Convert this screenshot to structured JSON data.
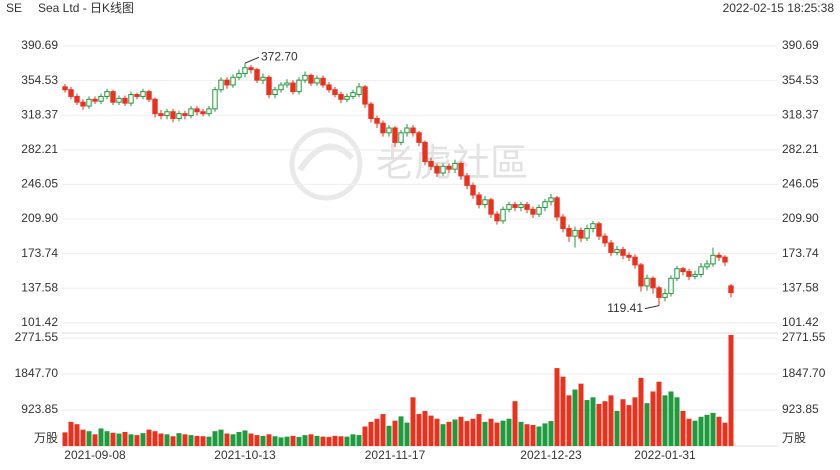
{
  "chart_data": {
    "type": "candlestick",
    "ticker": "SE",
    "title": "Sea Ltd - 日K线图",
    "timestamp": "2022-02-15 18:25:38",
    "watermark": "老虎社區",
    "categories": [
      null,
      null,
      null,
      null,
      null,
      "2021-09-08",
      null,
      null,
      null,
      null,
      null,
      null,
      null,
      null,
      null,
      null,
      null,
      null,
      null,
      null,
      null,
      null,
      null,
      null,
      null,
      null,
      null,
      null,
      null,
      null,
      "2021-10-13",
      null,
      null,
      null,
      null,
      null,
      null,
      null,
      null,
      null,
      null,
      null,
      null,
      null,
      null,
      null,
      null,
      null,
      null,
      null,
      null,
      null,
      null,
      null,
      null,
      "2021-11-17",
      null,
      null,
      null,
      null,
      null,
      null,
      null,
      null,
      null,
      null,
      null,
      null,
      null,
      null,
      null,
      null,
      null,
      null,
      null,
      null,
      null,
      null,
      null,
      null,
      null,
      "2021-12-23",
      null,
      null,
      null,
      null,
      null,
      null,
      null,
      null,
      null,
      null,
      null,
      null,
      null,
      null,
      null,
      null,
      null,
      null,
      "2022-01-31",
      null,
      null,
      null,
      null,
      null,
      null,
      null,
      null,
      null,
      null,
      null
    ],
    "open": [
      348,
      345,
      338,
      332,
      328,
      335,
      333,
      338,
      343,
      332,
      336,
      331,
      340,
      338,
      343,
      335,
      320,
      318,
      322,
      315,
      320,
      318,
      325,
      322,
      320,
      325,
      345,
      355,
      350,
      358,
      362,
      368,
      366,
      355,
      358,
      340,
      345,
      350,
      352,
      343,
      355,
      360,
      352,
      357,
      350,
      345,
      340,
      335,
      338,
      340,
      348,
      330,
      315,
      310,
      300,
      305,
      290,
      300,
      305,
      300,
      290,
      270,
      265,
      258,
      265,
      262,
      268,
      255,
      245,
      235,
      225,
      230,
      215,
      208,
      220,
      225,
      222,
      225,
      220,
      215,
      222,
      228,
      232,
      212,
      200,
      192,
      198,
      190,
      200,
      205,
      192,
      185,
      175,
      178,
      172,
      170,
      162,
      140,
      148,
      138,
      128,
      132,
      148,
      158,
      155,
      150,
      152,
      160,
      163,
      172,
      170,
      140
    ],
    "high": [
      351,
      348,
      341,
      335,
      338,
      338,
      341,
      346,
      345,
      339,
      339,
      343,
      342,
      346,
      345,
      337,
      324,
      325,
      325,
      323,
      323,
      328,
      328,
      325,
      328,
      348,
      358,
      358,
      361,
      366,
      372.7,
      371,
      368,
      362,
      360,
      348,
      353,
      356,
      355,
      358,
      364,
      362,
      360,
      360,
      353,
      348,
      343,
      341,
      345,
      352,
      350,
      332,
      318,
      313,
      308,
      307,
      303,
      309,
      308,
      302,
      292,
      274,
      268,
      268,
      268,
      272,
      270,
      258,
      248,
      238,
      234,
      232,
      218,
      223,
      228,
      228,
      228,
      228,
      223,
      225,
      231,
      236,
      234,
      215,
      204,
      202,
      201,
      204,
      208,
      207,
      195,
      188,
      182,
      181,
      175,
      173,
      164,
      152,
      150,
      140,
      137,
      151,
      161,
      160,
      158,
      156,
      164,
      167,
      180,
      175,
      172,
      142
    ],
    "low": [
      342,
      335,
      329,
      324,
      325,
      330,
      330,
      335,
      329,
      329,
      328,
      328,
      335,
      335,
      332,
      316,
      314,
      314,
      311,
      312,
      314,
      315,
      318,
      317,
      317,
      322,
      342,
      346,
      347,
      355,
      358,
      362,
      352,
      351,
      336,
      336,
      342,
      347,
      340,
      340,
      352,
      349,
      349,
      347,
      342,
      337,
      331,
      332,
      335,
      337,
      326,
      311,
      305,
      296,
      296,
      285,
      287,
      296,
      296,
      286,
      266,
      261,
      254,
      255,
      258,
      258,
      251,
      241,
      231,
      221,
      221,
      211,
      204,
      205,
      217,
      218,
      218,
      216,
      211,
      212,
      218,
      224,
      208,
      196,
      186,
      180,
      186,
      187,
      196,
      188,
      181,
      171,
      172,
      168,
      166,
      158,
      134,
      135,
      132,
      119.41,
      124,
      129,
      145,
      151,
      146,
      147,
      149,
      157,
      160,
      166,
      161,
      128
    ],
    "close": [
      345,
      338,
      332,
      328,
      335,
      333,
      338,
      343,
      332,
      336,
      331,
      340,
      338,
      343,
      335,
      320,
      318,
      322,
      315,
      320,
      318,
      325,
      322,
      320,
      325,
      345,
      355,
      350,
      358,
      362,
      368,
      366,
      355,
      358,
      340,
      345,
      350,
      352,
      343,
      355,
      360,
      352,
      357,
      350,
      345,
      340,
      335,
      338,
      342,
      348,
      330,
      315,
      310,
      300,
      305,
      290,
      300,
      305,
      300,
      290,
      270,
      265,
      258,
      265,
      262,
      268,
      255,
      245,
      235,
      225,
      230,
      215,
      208,
      220,
      225,
      222,
      225,
      220,
      215,
      222,
      228,
      232,
      212,
      200,
      192,
      198,
      190,
      200,
      205,
      192,
      185,
      175,
      178,
      172,
      170,
      162,
      140,
      148,
      138,
      128,
      132,
      148,
      158,
      155,
      150,
      152,
      160,
      163,
      172,
      170,
      165,
      133
    ],
    "volume": [
      350,
      620,
      560,
      420,
      380,
      300,
      450,
      380,
      340,
      320,
      360,
      300,
      280,
      330,
      420,
      380,
      320,
      300,
      250,
      330,
      300,
      280,
      260,
      250,
      240,
      380,
      420,
      320,
      300,
      360,
      400,
      320,
      280,
      260,
      300,
      250,
      220,
      240,
      260,
      230,
      280,
      300,
      260,
      240,
      230,
      260,
      250,
      240,
      300,
      280,
      500,
      620,
      700,
      820,
      520,
      650,
      760,
      600,
      1250,
      820,
      900,
      780,
      700,
      560,
      620,
      680,
      750,
      640,
      700,
      820,
      620,
      700,
      600,
      650,
      700,
      1150,
      620,
      560,
      540,
      500,
      580,
      640,
      2000,
      1780,
      1300,
      1450,
      1600,
      1180,
      1250,
      1080,
      1150,
      1300,
      900,
      1200,
      1050,
      1250,
      1750,
      1100,
      1400,
      1650,
      1300,
      1400,
      1250,
      900,
      700,
      650,
      750,
      800,
      850,
      750,
      600,
      2850
    ],
    "up_color": "#1f9a3c",
    "down_color": "#e8321e",
    "up_hollow": true,
    "ylim": [
      95,
      398
    ],
    "yticks": [
      390.69,
      354.53,
      318.37,
      282.21,
      246.05,
      {
        "value": 209.9,
        "label": "209.90"
      },
      173.74,
      137.58,
      101.42
    ],
    "volume_ylim": [
      0,
      2850
    ],
    "volume_yticks": [
      2771.55,
      {
        "value": 1847.7,
        "label": "1847.70"
      },
      923.85
    ],
    "volume_unit": "万股",
    "annotations": [
      {
        "label": "372.70",
        "value": 372.7
      },
      {
        "label": "119.41",
        "value": 119.41
      }
    ],
    "grid": true
  }
}
